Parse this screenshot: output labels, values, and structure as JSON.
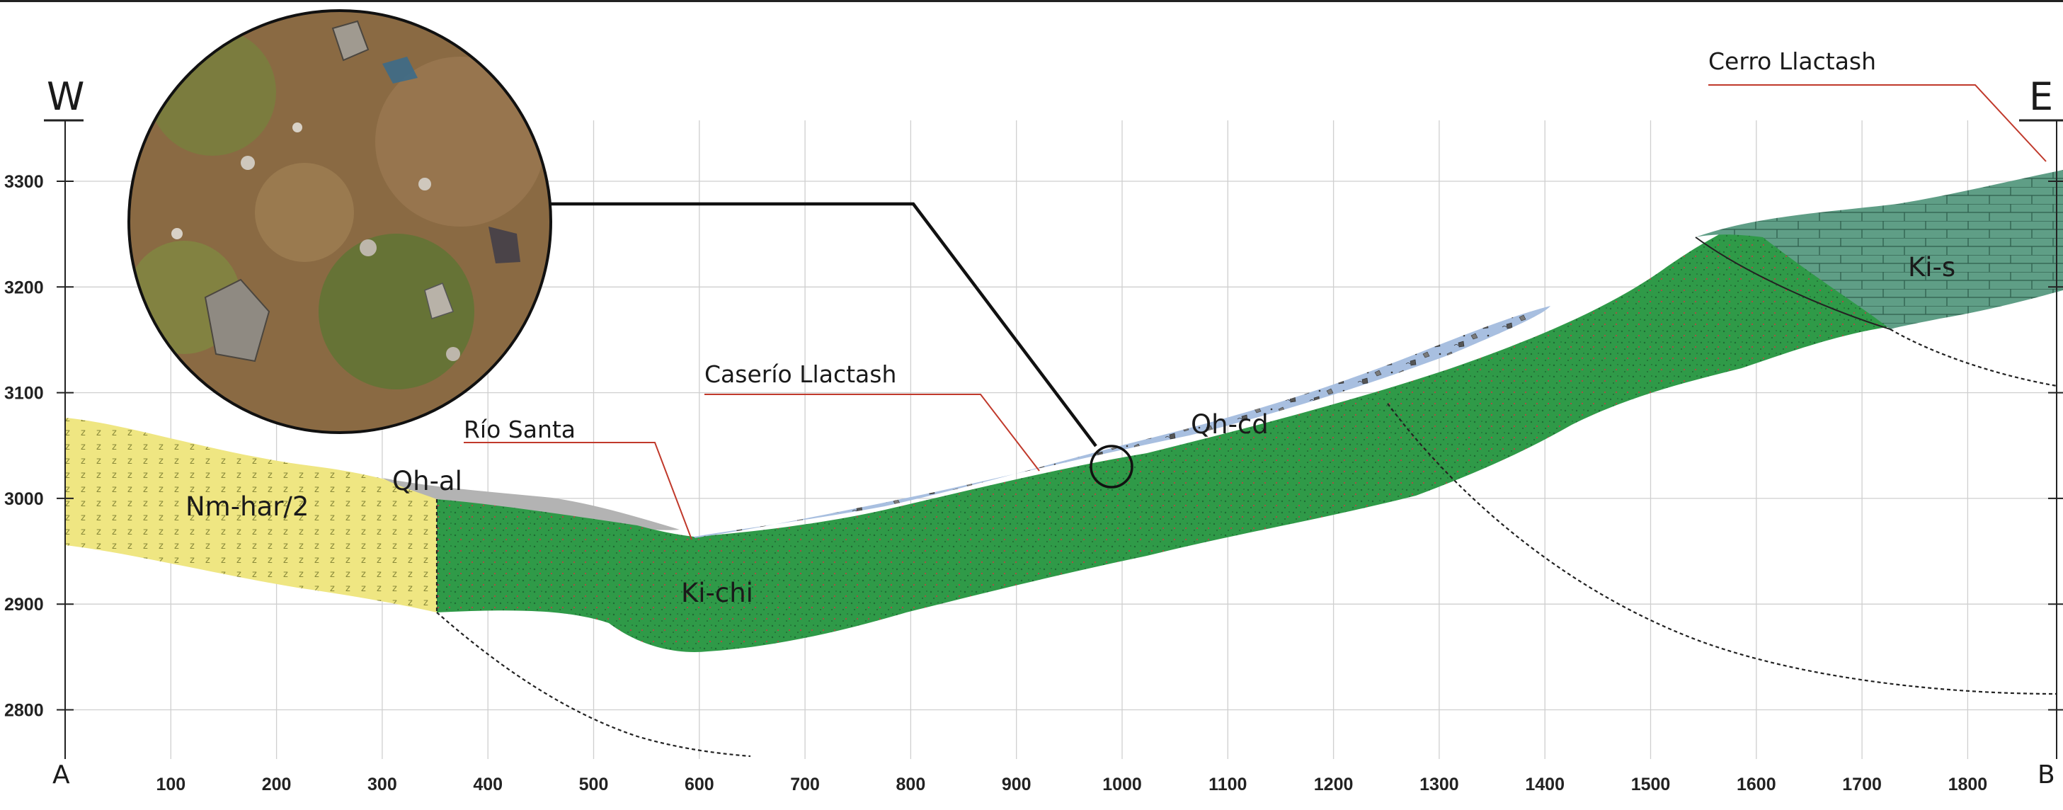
{
  "section": {
    "left_direction": "W",
    "right_direction": "E",
    "start_point": "A",
    "end_point": "B"
  },
  "axes": {
    "x_ticks": [
      "100",
      "200",
      "300",
      "400",
      "500",
      "600",
      "700",
      "800",
      "900",
      "1000",
      "1100",
      "1200",
      "1300",
      "1400",
      "1500",
      "1600",
      "1700",
      "1800"
    ],
    "y_ticks": [
      "3300",
      "3200",
      "3100",
      "3000",
      "2900",
      "2800"
    ]
  },
  "units": [
    {
      "code": "Nm-har/2",
      "color": "#efe682"
    },
    {
      "code": "Qh-al",
      "color": "#b3b3b3"
    },
    {
      "code": "Ki-chi",
      "color": "#2f9a48"
    },
    {
      "code": "Qh-cd",
      "color": "#a8bfe0"
    },
    {
      "code": "Ki-s",
      "color": "#5f9e86"
    }
  ],
  "places": {
    "cerro": "Cerro Llactash",
    "caserio": "Caserío Llactash",
    "rio": "Río Santa"
  },
  "photo": {
    "description_icon": "outcrop-photo"
  }
}
